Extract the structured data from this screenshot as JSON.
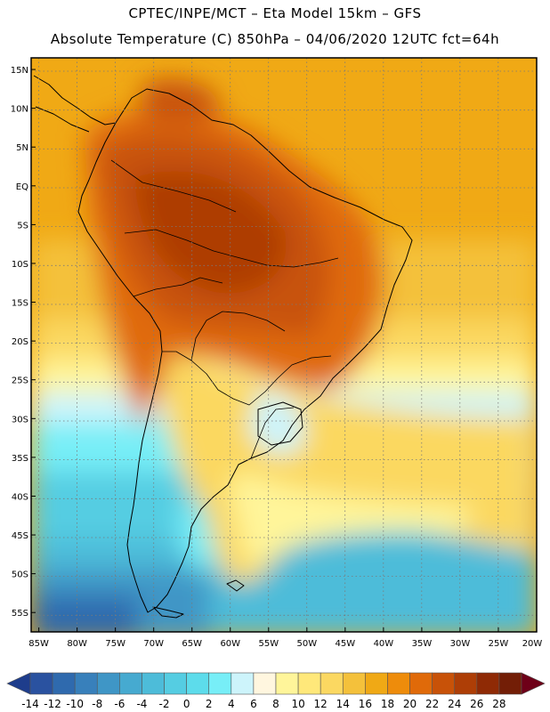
{
  "header": {
    "line1": "CPTEC/INPE/MCT –  Eta Model 15km – GFS",
    "line2": "Absolute Temperature (C) 850hPa – 04/06/2020 12UTC fct=64h"
  },
  "map": {
    "lat_labels": [
      "15N",
      "10N",
      "5N",
      "EQ",
      "5S",
      "10S",
      "15S",
      "20S",
      "25S",
      "30S",
      "35S",
      "40S",
      "45S",
      "50S",
      "55S"
    ],
    "lon_labels": [
      "85W",
      "80W",
      "75W",
      "70W",
      "65W",
      "60W",
      "55W",
      "50W",
      "45W",
      "40W",
      "35W",
      "30W",
      "25W",
      "20W"
    ],
    "lat_range": [
      -57.5,
      16.5
    ],
    "lon_range": [
      -86,
      -20
    ]
  },
  "colorbar": {
    "labels": [
      "-14",
      "-12",
      "-10",
      "-8",
      "-6",
      "-4",
      "-2",
      "0",
      "2",
      "4",
      "6",
      "8",
      "10",
      "12",
      "14",
      "16",
      "18",
      "20",
      "22",
      "24",
      "26",
      "28"
    ],
    "colors": [
      "#1e3d8c",
      "#2a52a0",
      "#2f6aae",
      "#3880bb",
      "#3f96c6",
      "#46aad0",
      "#4dbcd9",
      "#55cde2",
      "#5ddceb",
      "#77eef7",
      "#cdf4fb",
      "#fff6df",
      "#fff59a",
      "#ffe87a",
      "#fbd861",
      "#f4c13b",
      "#f0a915",
      "#ee8c0b",
      "#e06a09",
      "#c85208",
      "#ae3e06",
      "#8f2a05",
      "#731e06",
      "#6e0018"
    ]
  }
}
